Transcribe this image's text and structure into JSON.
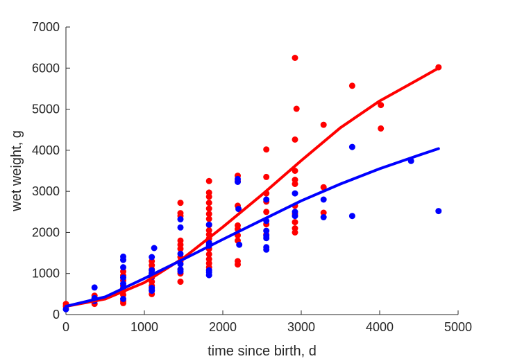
{
  "chart_data": {
    "type": "scatter",
    "title": "",
    "xlabel": "time since birth, d",
    "ylabel": "wet weight, g",
    "xlim": [
      0,
      5000
    ],
    "ylim": [
      0,
      7000
    ],
    "xticks": [
      0,
      1000,
      2000,
      3000,
      4000,
      5000
    ],
    "yticks": [
      0,
      1000,
      2000,
      3000,
      4000,
      5000,
      6000,
      7000
    ],
    "grid": false,
    "legend": "none",
    "series": [
      {
        "color": "#ff0000",
        "points": [
          [
            0,
            260
          ],
          [
            0,
            200
          ],
          [
            365,
            460
          ],
          [
            365,
            400
          ],
          [
            365,
            330
          ],
          [
            365,
            260
          ],
          [
            730,
            1050
          ],
          [
            730,
            950
          ],
          [
            730,
            830
          ],
          [
            730,
            700
          ],
          [
            730,
            580
          ],
          [
            730,
            480
          ],
          [
            730,
            330
          ],
          [
            730,
            280
          ],
          [
            1095,
            1300
          ],
          [
            1095,
            1200
          ],
          [
            1095,
            1100
          ],
          [
            1095,
            1000
          ],
          [
            1095,
            900
          ],
          [
            1095,
            800
          ],
          [
            1095,
            700
          ],
          [
            1095,
            600
          ],
          [
            1095,
            500
          ],
          [
            1460,
            2720
          ],
          [
            1460,
            2470
          ],
          [
            1460,
            2400
          ],
          [
            1460,
            1800
          ],
          [
            1460,
            1700
          ],
          [
            1460,
            1600
          ],
          [
            1460,
            1400
          ],
          [
            1460,
            1300
          ],
          [
            1460,
            1100
          ],
          [
            1460,
            1000
          ],
          [
            1460,
            800
          ],
          [
            1825,
            3250
          ],
          [
            1825,
            2970
          ],
          [
            1825,
            2870
          ],
          [
            1825,
            2720
          ],
          [
            1825,
            2580
          ],
          [
            1825,
            2450
          ],
          [
            1825,
            2330
          ],
          [
            1825,
            2180
          ],
          [
            1825,
            2050
          ],
          [
            1825,
            1950
          ],
          [
            1825,
            1850
          ],
          [
            1825,
            1700
          ],
          [
            1825,
            1600
          ],
          [
            1825,
            1470
          ],
          [
            1825,
            1350
          ],
          [
            1825,
            1250
          ],
          [
            1825,
            1150
          ],
          [
            2190,
            3380
          ],
          [
            2190,
            3250
          ],
          [
            2190,
            2650
          ],
          [
            2190,
            2170
          ],
          [
            2190,
            2080
          ],
          [
            2190,
            1930
          ],
          [
            2190,
            1800
          ],
          [
            2190,
            1300
          ],
          [
            2190,
            1220
          ],
          [
            2555,
            4020
          ],
          [
            2555,
            3350
          ],
          [
            2555,
            2950
          ],
          [
            2555,
            2750
          ],
          [
            2555,
            2500
          ],
          [
            2555,
            2200
          ],
          [
            2555,
            1950
          ],
          [
            2920,
            6250
          ],
          [
            2920,
            4260
          ],
          [
            2920,
            3500
          ],
          [
            2920,
            3280
          ],
          [
            2920,
            3180
          ],
          [
            2940,
            5010
          ],
          [
            2920,
            2650
          ],
          [
            2920,
            2450
          ],
          [
            2920,
            2250
          ],
          [
            2920,
            2100
          ],
          [
            2920,
            2000
          ],
          [
            3285,
            4620
          ],
          [
            3285,
            3100
          ],
          [
            3285,
            2480
          ],
          [
            3650,
            5570
          ],
          [
            4015,
            5100
          ],
          [
            4015,
            4530
          ],
          [
            4750,
            6020
          ]
        ],
        "fit": [
          [
            0,
            200
          ],
          [
            500,
            380
          ],
          [
            1000,
            780
          ],
          [
            1500,
            1380
          ],
          [
            2000,
            2130
          ],
          [
            2500,
            2920
          ],
          [
            3000,
            3750
          ],
          [
            3500,
            4550
          ],
          [
            4000,
            5200
          ],
          [
            4500,
            5730
          ],
          [
            4750,
            6000
          ]
        ]
      },
      {
        "color": "#0000ff",
        "points": [
          [
            0,
            130
          ],
          [
            365,
            660
          ],
          [
            365,
            400
          ],
          [
            365,
            330
          ],
          [
            730,
            1410
          ],
          [
            730,
            1330
          ],
          [
            730,
            1150
          ],
          [
            730,
            900
          ],
          [
            730,
            750
          ],
          [
            730,
            640
          ],
          [
            730,
            380
          ],
          [
            1095,
            1400
          ],
          [
            1095,
            1080
          ],
          [
            1095,
            1010
          ],
          [
            1095,
            980
          ],
          [
            1095,
            920
          ],
          [
            1095,
            650
          ],
          [
            1095,
            580
          ],
          [
            1125,
            1620
          ],
          [
            1460,
            2320
          ],
          [
            1460,
            2120
          ],
          [
            1460,
            1480
          ],
          [
            1460,
            1230
          ],
          [
            1460,
            1100
          ],
          [
            1460,
            1050
          ],
          [
            1825,
            2190
          ],
          [
            1825,
            1750
          ],
          [
            1825,
            1680
          ],
          [
            1825,
            1080
          ],
          [
            1825,
            1030
          ],
          [
            1825,
            960
          ],
          [
            2190,
            3300
          ],
          [
            2190,
            3230
          ],
          [
            2200,
            2570
          ],
          [
            2210,
            1700
          ],
          [
            2555,
            2800
          ],
          [
            2555,
            2280
          ],
          [
            2555,
            2040
          ],
          [
            2555,
            1920
          ],
          [
            2555,
            1860
          ],
          [
            2555,
            1640
          ],
          [
            2555,
            1580
          ],
          [
            2920,
            2950
          ],
          [
            2920,
            2500
          ],
          [
            2920,
            2400
          ],
          [
            3285,
            2800
          ],
          [
            3285,
            2370
          ],
          [
            3650,
            4080
          ],
          [
            3650,
            2400
          ],
          [
            4400,
            3740
          ],
          [
            4750,
            2520
          ]
        ],
        "fit": [
          [
            0,
            200
          ],
          [
            500,
            430
          ],
          [
            1000,
            880
          ],
          [
            1500,
            1350
          ],
          [
            2000,
            1830
          ],
          [
            2500,
            2300
          ],
          [
            3000,
            2770
          ],
          [
            3500,
            3180
          ],
          [
            4000,
            3550
          ],
          [
            4500,
            3880
          ],
          [
            4750,
            4040
          ]
        ]
      }
    ]
  }
}
